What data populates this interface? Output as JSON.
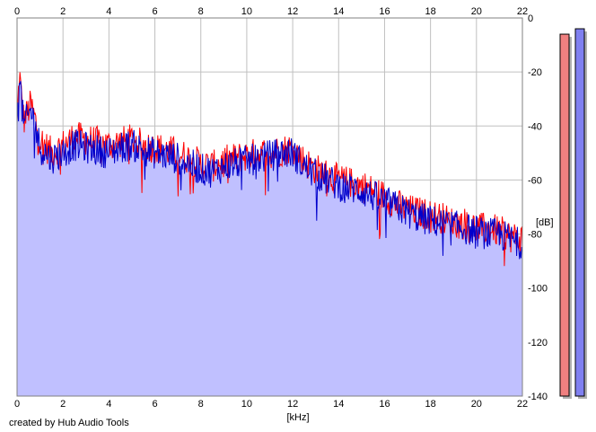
{
  "footer": {
    "credit": "created by Hub Audio Tools"
  },
  "chart_data": {
    "type": "area",
    "title": "",
    "xlabel": "[kHz]",
    "ylabel": "[dB]",
    "xlim": [
      0,
      22
    ],
    "ylim": [
      -140,
      0
    ],
    "x_ticks": [
      0,
      2,
      4,
      6,
      8,
      10,
      12,
      14,
      16,
      18,
      20,
      22
    ],
    "y_ticks": [
      0,
      -20,
      -40,
      -60,
      -80,
      -100,
      -120,
      -140
    ],
    "grid": true,
    "legend": "none",
    "colors": {
      "left_channel": "#ff0000",
      "right_channel": "#0000cc",
      "fill": "#c0c0ff",
      "meter_left": "#f08080",
      "meter_right": "#8080f0"
    },
    "series": [
      {
        "x": [
          0,
          0.1,
          0.2,
          0.3,
          0.4,
          0.6,
          0.8,
          1.0,
          1.5,
          2.0,
          2.5,
          3.0,
          3.5,
          4.0,
          4.5,
          5.0,
          5.5,
          6.0,
          6.5,
          7.0,
          7.5,
          8.0,
          8.5,
          9.0,
          9.5,
          10.0,
          10.5,
          11.0,
          11.5,
          12.0,
          12.5,
          13.0,
          13.5,
          14.0,
          14.5,
          15.0,
          15.5,
          16.0,
          16.5,
          17.0,
          17.5,
          18.0,
          18.5,
          19.0,
          19.5,
          20.0,
          20.5,
          21.0,
          21.5,
          22.0
        ],
        "values": [
          -40,
          -20,
          -30,
          -38,
          -36,
          -32,
          -38,
          -45,
          -50,
          -47,
          -44,
          -45,
          -46,
          -47,
          -46,
          -45,
          -47,
          -48,
          -49,
          -50,
          -52,
          -54,
          -55,
          -53,
          -52,
          -51,
          -50,
          -50,
          -49,
          -48,
          -53,
          -56,
          -58,
          -60,
          -61,
          -62,
          -64,
          -66,
          -69,
          -71,
          -72,
          -73,
          -74,
          -76,
          -76,
          -78,
          -78,
          -79,
          -81,
          -82
        ]
      },
      {
        "x": [
          0,
          0.1,
          0.2,
          0.3,
          0.4,
          0.6,
          0.8,
          1.0,
          1.5,
          2.0,
          2.5,
          3.0,
          3.5,
          4.0,
          4.5,
          5.0,
          5.5,
          6.0,
          6.5,
          7.0,
          7.5,
          8.0,
          8.5,
          9.0,
          9.5,
          10.0,
          10.5,
          11.0,
          11.5,
          12.0,
          12.5,
          13.0,
          13.5,
          14.0,
          14.5,
          15.0,
          15.5,
          16.0,
          16.5,
          17.0,
          17.5,
          18.0,
          18.5,
          19.0,
          19.5,
          20.0,
          20.5,
          21.0,
          21.5,
          22.0
        ],
        "values": [
          -42,
          -18,
          -32,
          -40,
          -38,
          -34,
          -40,
          -48,
          -52,
          -50,
          -47,
          -48,
          -49,
          -50,
          -48,
          -47,
          -49,
          -50,
          -51,
          -52,
          -54,
          -56,
          -57,
          -55,
          -54,
          -53,
          -52,
          -51,
          -50,
          -50,
          -55,
          -58,
          -60,
          -62,
          -63,
          -64,
          -66,
          -68,
          -70,
          -72,
          -74,
          -75,
          -76,
          -77,
          -78,
          -79,
          -80,
          -80,
          -82,
          -84
        ]
      }
    ],
    "meters": {
      "left_level_db": -6,
      "right_level_db": -4
    }
  }
}
